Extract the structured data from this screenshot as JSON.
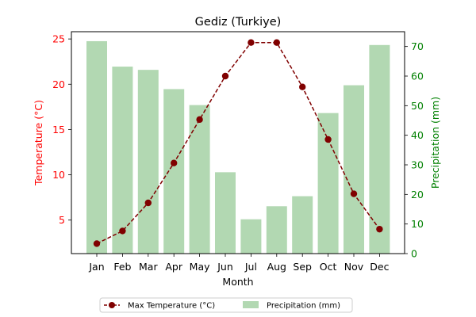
{
  "chart_data": {
    "type": "bar+line",
    "title": "Gediz (Turkiye)",
    "xlabel": "Month",
    "categories": [
      "Jan",
      "Feb",
      "Mar",
      "Apr",
      "May",
      "Jun",
      "Jul",
      "Aug",
      "Sep",
      "Oct",
      "Nov",
      "Dec"
    ],
    "temperature": {
      "name": "Max Temperature (°C)",
      "axis_label": "Temperature (°C)",
      "color": "#800000",
      "axis_color": "#ff0000",
      "ylim": [
        1.3,
        25.8
      ],
      "ticks": [
        5,
        10,
        15,
        20,
        25
      ],
      "values": [
        2.4,
        3.8,
        6.9,
        11.3,
        16.1,
        20.9,
        24.6,
        24.6,
        19.7,
        13.9,
        7.9,
        4.0
      ]
    },
    "precipitation": {
      "name": "Precipitation (mm)",
      "axis_label": "Precipitation (mm)",
      "color": "#b2d8b2",
      "axis_color": "#008000",
      "ylim": [
        0,
        75
      ],
      "ticks": [
        0,
        10,
        20,
        30,
        40,
        50,
        60,
        70
      ],
      "values": [
        71.8,
        63.2,
        62.1,
        55.6,
        50.2,
        27.5,
        11.6,
        16.0,
        19.4,
        47.5,
        56.9,
        70.5
      ]
    },
    "legend": {
      "placement": "bottom-center",
      "line_label": "Max Temperature (°C)",
      "bar_label": "Precipitation (mm)"
    }
  }
}
